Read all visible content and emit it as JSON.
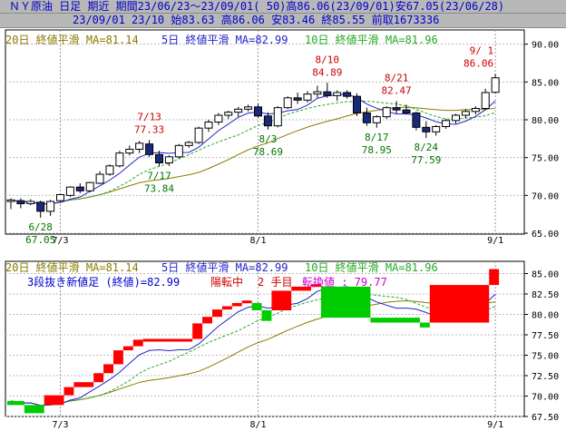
{
  "header": {
    "line1": "ＮＹ原油 日足 期近 期間23/06/23～23/09/01( 50)高86.06(23/09/01)安67.05(23/06/28)",
    "line2": "23/09/01 23/10 始83.63 高86.06 安83.46 終85.55 前取1673336"
  },
  "legend": {
    "ma20": "20日 終値平滑 MA=81.14",
    "ma5": "5日 終値平滑 MA=82.99",
    "ma10": "10日 終値平滑 MA=81.96"
  },
  "renko_info": {
    "label": "3段抜き新値足 (終値)=82.99",
    "state": "陽転中",
    "count": "2 手目",
    "reversal": "転換値 : 79.77"
  },
  "colors": {
    "up_candle": "#ffffff",
    "down_candle": "#1a2a7a",
    "ma20": "#8a7a00",
    "ma5": "#2222cc",
    "ma10": "#22aa22",
    "high_annot": "#cc0000",
    "low_annot": "#007700",
    "renko_up": "#ff0000",
    "renko_down": "#00cc00"
  },
  "chart_data": [
    {
      "type": "candlestick",
      "yticks": [
        "90.00",
        "85.00",
        "80.00",
        "75.00",
        "70.00",
        "65.00"
      ],
      "yrange": [
        65,
        92
      ],
      "xlabels": [
        "7/3",
        "8/1",
        "9/1"
      ],
      "annotations": [
        {
          "date": "6/28",
          "value": "67.05",
          "kind": "low"
        },
        {
          "date": "7/13",
          "value": "77.33",
          "kind": "high"
        },
        {
          "date": "7/17",
          "value": "73.84",
          "kind": "low"
        },
        {
          "date": "8/3",
          "value": "78.69",
          "kind": "low"
        },
        {
          "date": "8/10",
          "value": "84.89",
          "kind": "high"
        },
        {
          "date": "8/17",
          "value": "78.95",
          "kind": "low"
        },
        {
          "date": "8/21",
          "value": "82.47",
          "kind": "high"
        },
        {
          "date": "8/24",
          "value": "77.59",
          "kind": "low"
        },
        {
          "date": "9/ 1",
          "value": "86.06",
          "kind": "high"
        }
      ],
      "candles": [
        [
          69.2,
          69.6,
          68.2,
          69.4
        ],
        [
          69.3,
          69.6,
          68.3,
          68.9
        ],
        [
          68.9,
          69.5,
          68.7,
          69.2
        ],
        [
          69.1,
          69.3,
          67.05,
          67.9
        ],
        [
          67.9,
          69.4,
          67.3,
          69.2
        ],
        [
          69.3,
          70.2,
          69.1,
          70.1
        ],
        [
          70.0,
          71.2,
          69.8,
          71.1
        ],
        [
          71.1,
          71.6,
          70.3,
          70.6
        ],
        [
          70.6,
          71.8,
          70.4,
          71.7
        ],
        [
          71.6,
          73.2,
          71.5,
          72.8
        ],
        [
          72.8,
          74.1,
          72.6,
          73.9
        ],
        [
          73.9,
          75.9,
          73.7,
          75.6
        ],
        [
          75.6,
          76.6,
          75.3,
          76.1
        ],
        [
          76.1,
          77.2,
          75.6,
          76.9
        ],
        [
          76.8,
          77.33,
          75.1,
          75.4
        ],
        [
          75.4,
          75.9,
          73.84,
          74.3
        ],
        [
          74.3,
          75.3,
          73.9,
          75.1
        ],
        [
          75.1,
          76.8,
          74.9,
          76.6
        ],
        [
          76.6,
          77.2,
          76.3,
          77.0
        ],
        [
          77.0,
          79.1,
          76.8,
          78.9
        ],
        [
          78.9,
          80.0,
          78.4,
          79.7
        ],
        [
          79.7,
          80.9,
          79.3,
          80.6
        ],
        [
          80.6,
          81.2,
          80.1,
          81.0
        ],
        [
          81.0,
          81.7,
          80.4,
          81.4
        ],
        [
          81.4,
          82.0,
          81.1,
          81.7
        ],
        [
          81.7,
          82.1,
          80.3,
          80.5
        ],
        [
          80.5,
          81.0,
          78.69,
          79.2
        ],
        [
          79.2,
          81.8,
          79.0,
          81.6
        ],
        [
          81.6,
          83.1,
          81.4,
          82.9
        ],
        [
          82.9,
          83.6,
          82.1,
          82.6
        ],
        [
          82.6,
          83.8,
          82.3,
          83.4
        ],
        [
          83.4,
          84.5,
          82.9,
          83.7
        ],
        [
          83.7,
          84.89,
          82.9,
          83.2
        ],
        [
          83.2,
          83.9,
          82.5,
          83.6
        ],
        [
          83.6,
          83.9,
          82.8,
          83.1
        ],
        [
          83.1,
          83.5,
          80.5,
          80.9
        ],
        [
          80.9,
          81.6,
          79.2,
          79.6
        ],
        [
          79.6,
          80.6,
          78.95,
          80.4
        ],
        [
          80.4,
          81.8,
          80.1,
          81.6
        ],
        [
          81.6,
          82.47,
          80.8,
          81.3
        ],
        [
          81.3,
          82.0,
          80.7,
          80.9
        ],
        [
          80.9,
          81.1,
          78.6,
          79.0
        ],
        [
          79.0,
          79.8,
          77.59,
          78.4
        ],
        [
          78.4,
          79.3,
          77.9,
          79.1
        ],
        [
          79.1,
          80.1,
          78.8,
          79.9
        ],
        [
          79.9,
          80.8,
          79.5,
          80.6
        ],
        [
          80.6,
          81.4,
          80.2,
          81.1
        ],
        [
          81.1,
          81.8,
          80.7,
          81.5
        ],
        [
          81.5,
          84.1,
          81.3,
          83.6
        ],
        [
          83.63,
          86.06,
          83.46,
          85.55
        ]
      ]
    },
    {
      "type": "renko",
      "yticks": [
        "85.00",
        "82.50",
        "80.00",
        "77.50",
        "75.00",
        "72.50",
        "70.00",
        "67.50"
      ],
      "yrange": [
        67.5,
        86.5
      ],
      "xlabels": [
        "7/3",
        "8/1",
        "9/1"
      ]
    }
  ]
}
